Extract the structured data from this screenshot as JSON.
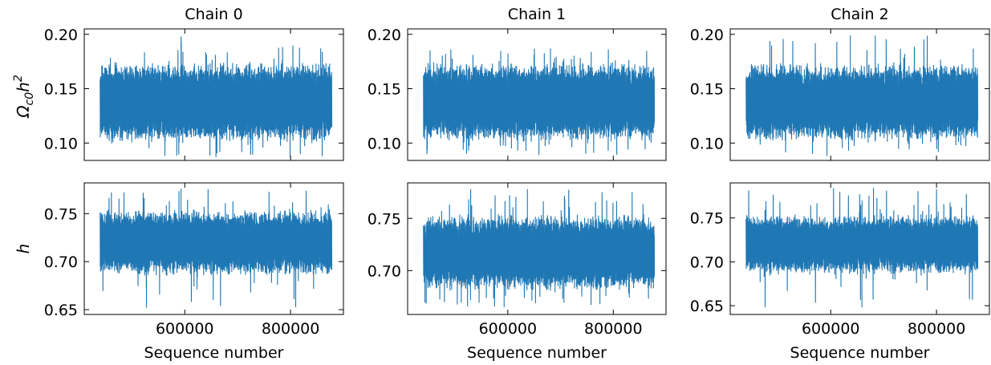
{
  "colors": {
    "trace": "#1f77b4",
    "axes": "#000000",
    "background": "#ffffff"
  },
  "chart_data": [
    {
      "type": "line",
      "title": "Chain 0",
      "ylabel": "",
      "xlabel": "",
      "xlim": [
        410000,
        900000
      ],
      "ylim": [
        0.084,
        0.205
      ],
      "yticks": [
        "0.10",
        "0.15",
        "0.20"
      ],
      "ytick_values": [
        0.1,
        0.15,
        0.2
      ],
      "xticks": [],
      "xtick_values": [
        600000,
        800000
      ],
      "series": [
        {
          "x_range": [
            440000,
            878000
          ],
          "center": 0.137,
          "band": [
            0.1,
            0.175
          ],
          "extreme_min": 0.087,
          "extreme_max": 0.198,
          "seed": 11
        }
      ]
    },
    {
      "type": "line",
      "title": "Chain 1",
      "ylabel": "",
      "xlabel": "",
      "xlim": [
        410000,
        900000
      ],
      "ylim": [
        0.084,
        0.205
      ],
      "yticks": [
        "0.10",
        "0.15",
        "0.20"
      ],
      "ytick_values": [
        0.1,
        0.15,
        0.2
      ],
      "xticks": [],
      "xtick_values": [
        600000,
        800000
      ],
      "series": [
        {
          "x_range": [
            440000,
            878000
          ],
          "center": 0.137,
          "band": [
            0.1,
            0.175
          ],
          "extreme_min": 0.089,
          "extreme_max": 0.187,
          "seed": 23
        }
      ]
    },
    {
      "type": "line",
      "title": "Chain 2",
      "ylabel": "",
      "xlabel": "",
      "xlim": [
        410000,
        900000
      ],
      "ylim": [
        0.084,
        0.205
      ],
      "yticks": [
        "0.10",
        "0.15",
        "0.20"
      ],
      "ytick_values": [
        0.1,
        0.15,
        0.2
      ],
      "xticks": [],
      "xtick_values": [
        600000,
        800000
      ],
      "series": [
        {
          "x_range": [
            440000,
            878000
          ],
          "center": 0.137,
          "band": [
            0.1,
            0.175
          ],
          "extreme_min": 0.088,
          "extreme_max": 0.199,
          "seed": 37
        }
      ]
    },
    {
      "type": "line",
      "title": "",
      "ylabel": "h",
      "xlabel": "Sequence number",
      "xlim": [
        410000,
        900000
      ],
      "ylim": [
        0.645,
        0.782
      ],
      "yticks": [
        "0.65",
        "0.70",
        "0.75"
      ],
      "ytick_values": [
        0.65,
        0.7,
        0.75
      ],
      "xticks": [
        "600000",
        "800000"
      ],
      "xtick_values": [
        600000,
        800000
      ],
      "series": [
        {
          "x_range": [
            440000,
            878000
          ],
          "center": 0.718,
          "band": [
            0.685,
            0.755
          ],
          "extreme_min": 0.652,
          "extreme_max": 0.776,
          "seed": 51
        }
      ]
    },
    {
      "type": "line",
      "title": "",
      "ylabel": "",
      "xlabel": "Sequence number",
      "xlim": [
        410000,
        900000
      ],
      "ylim": [
        0.658,
        0.784
      ],
      "yticks": [
        "0.70",
        "0.75"
      ],
      "ytick_values": [
        0.7,
        0.75
      ],
      "xticks": [
        "600000",
        "800000"
      ],
      "xtick_values": [
        600000,
        800000
      ],
      "series": [
        {
          "x_range": [
            440000,
            878000
          ],
          "center": 0.717,
          "band": [
            0.68,
            0.755
          ],
          "extreme_min": 0.665,
          "extreme_max": 0.778,
          "seed": 67
        }
      ]
    },
    {
      "type": "line",
      "title": "",
      "ylabel": "",
      "xlabel": "Sequence number",
      "xlim": [
        410000,
        900000
      ],
      "ylim": [
        0.64,
        0.79
      ],
      "yticks": [
        "0.65",
        "0.70",
        "0.75"
      ],
      "ytick_values": [
        0.65,
        0.7,
        0.75
      ],
      "xticks": [
        "600000",
        "800000"
      ],
      "xtick_values": [
        600000,
        800000
      ],
      "series": [
        {
          "x_range": [
            440000,
            878000
          ],
          "center": 0.718,
          "band": [
            0.685,
            0.755
          ],
          "extreme_min": 0.648,
          "extreme_max": 0.784,
          "seed": 83
        }
      ]
    }
  ],
  "row_ylabel_top": {
    "prefix": "Ω",
    "sub": "c0",
    "main": "h",
    "sup": "2"
  }
}
